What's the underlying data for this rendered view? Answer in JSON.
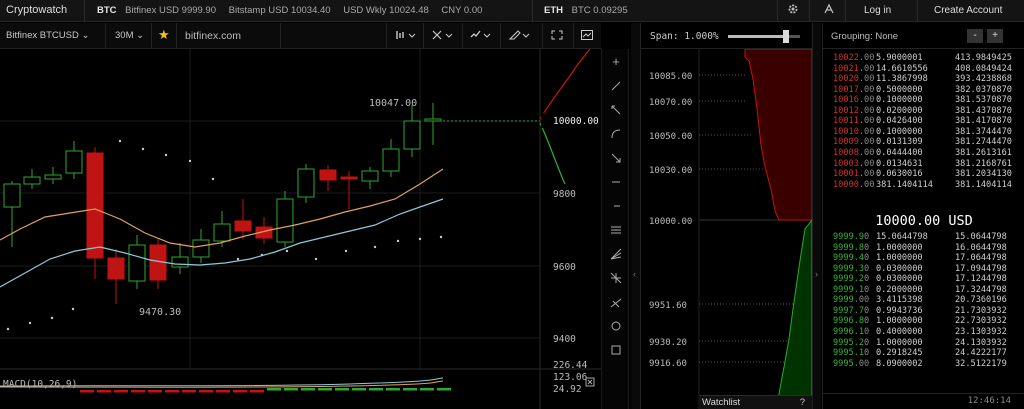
{
  "topbar": {
    "brand": "Cryptowatch",
    "tickers": [
      {
        "symbol": "BTC",
        "quotes": [
          "Bitfinex USD 9999.90",
          "Bitstamp USD 10034.40",
          "USD Wkly 10024.48",
          "CNY 0.00"
        ]
      },
      {
        "symbol": "ETH",
        "quotes": [
          "BTC 0.09295"
        ]
      }
    ],
    "login": "Log in",
    "create_account": "Create Account"
  },
  "toolbar": {
    "market": "Bitfinex BTCUSD",
    "period": "30M",
    "link": "bitfinex.com"
  },
  "chart": {
    "price_labels": [
      "9800",
      "9600",
      "9400"
    ],
    "high_label": "10047.00",
    "low_label": "9470.30",
    "current_price": "10000.00",
    "macd_label": "MACD(10,26,9)",
    "macd_values": [
      "226.44",
      "123.06",
      "24.92"
    ]
  },
  "depth": {
    "span_label": "Span: 1.000%",
    "span_value": 0.8,
    "price_labels": [
      "10085.00",
      "10070.00",
      "10050.00",
      "10030.00",
      "10000.00",
      "9951.60",
      "9930.20",
      "9916.60"
    ],
    "watchlist": "Watchlist",
    "help": "?"
  },
  "orderbook": {
    "grouping": "Grouping: None",
    "minus": "-",
    "plus": "+",
    "mid_price": "10000.00 USD",
    "time": "12:46:14",
    "asks": [
      [
        "10022.00",
        "5.9000001",
        "413.9849425"
      ],
      [
        "10021.00",
        "14.6610556",
        "408.0849424"
      ],
      [
        "10020.00",
        "11.3867998",
        "393.4238868"
      ],
      [
        "10017.00",
        "0.5000000",
        "382.0370870"
      ],
      [
        "10016.00",
        "0.1000000",
        "381.5370870"
      ],
      [
        "10012.00",
        "0.0200000",
        "381.4370870"
      ],
      [
        "10011.00",
        "0.0426400",
        "381.4170870"
      ],
      [
        "10010.00",
        "0.1000000",
        "381.3744470"
      ],
      [
        "10009.00",
        "0.0131309",
        "381.2744470"
      ],
      [
        "10008.00",
        "0.0444400",
        "381.2613161"
      ],
      [
        "10003.00",
        "0.0134631",
        "381.2168761"
      ],
      [
        "10001.00",
        "0.0630016",
        "381.2034130"
      ],
      [
        "10000.00",
        "381.1404114",
        "381.1404114"
      ]
    ],
    "bids": [
      [
        "9999.90",
        "15.0644798",
        "15.0644798"
      ],
      [
        "9999.80",
        "1.0000000",
        "16.0644798"
      ],
      [
        "9999.40",
        "1.0000000",
        "17.0644798"
      ],
      [
        "9999.30",
        "0.0300000",
        "17.0944798"
      ],
      [
        "9999.20",
        "0.0300000",
        "17.1244798"
      ],
      [
        "9999.10",
        "0.2000000",
        "17.3244798"
      ],
      [
        "9999.00",
        "3.4115398",
        "20.7360196"
      ],
      [
        "9997.70",
        "0.9943736",
        "21.7303932"
      ],
      [
        "9996.80",
        "1.0000000",
        "22.7303932"
      ],
      [
        "9996.10",
        "0.4000000",
        "23.1303932"
      ],
      [
        "9995.20",
        "1.0000000",
        "24.1303932"
      ],
      [
        "9995.10",
        "0.2918245",
        "24.4222177"
      ],
      [
        "9995.00",
        "8.0900002",
        "32.5122179"
      ]
    ]
  },
  "colors": {
    "up": "#2fa82f",
    "down": "#c01414",
    "ema_fast": "#e0a060",
    "ema_slow": "#8ec8d8"
  },
  "icons": [
    "settings-gear-icon",
    "notification-icon",
    "favorite-star-icon",
    "chart-type-icon",
    "crosshair-tool-icon",
    "line-style-icon",
    "draw-pencil-icon",
    "fullscreen-icon",
    "screenshot-icon"
  ]
}
